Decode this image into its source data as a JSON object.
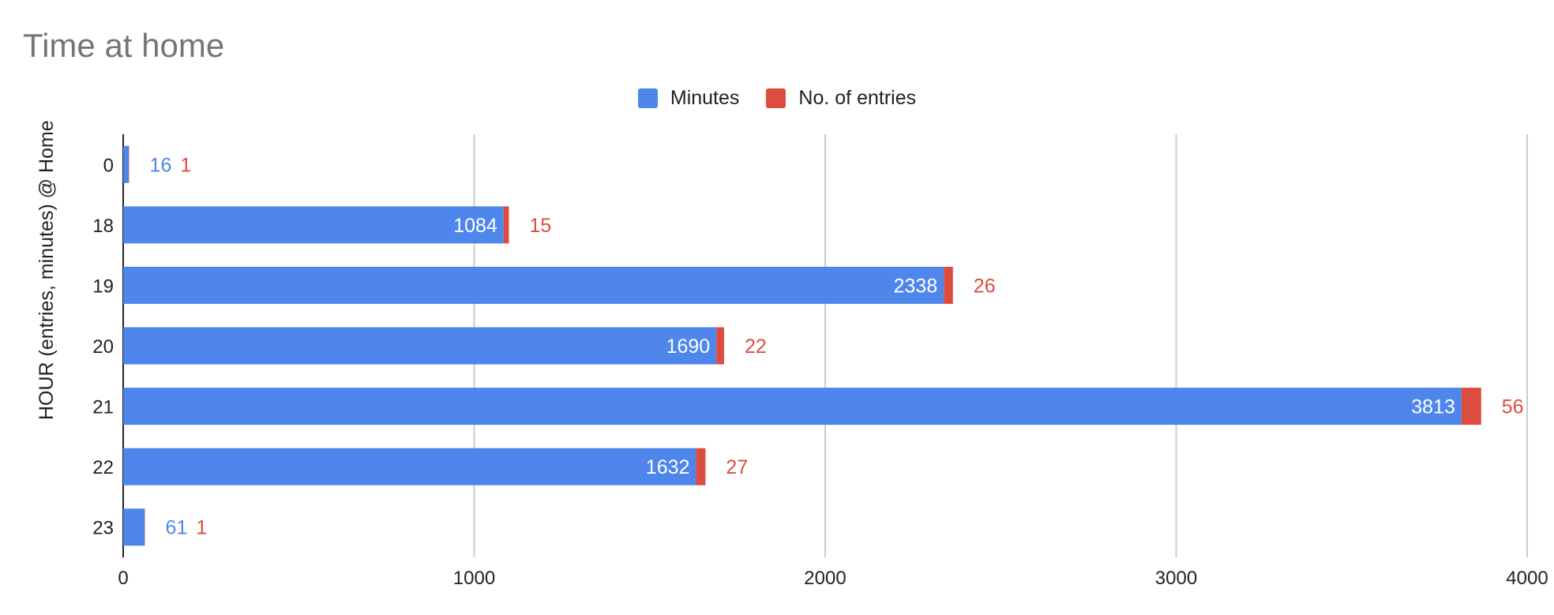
{
  "chart_data": {
    "type": "bar",
    "orientation": "horizontal",
    "stacked": true,
    "title": "Time at home",
    "ylabel": "HOUR  (entries, minutes) @ Home",
    "xlabel": "",
    "categories": [
      "0",
      "18",
      "19",
      "20",
      "21",
      "22",
      "23"
    ],
    "series": [
      {
        "name": "Minutes",
        "color": "#4f86ec",
        "values": [
          16,
          1084,
          2338,
          1690,
          3813,
          1632,
          61
        ]
      },
      {
        "name": "No. of entries",
        "color": "#dc4d3f",
        "values": [
          1,
          15,
          26,
          22,
          56,
          27,
          1
        ]
      }
    ],
    "xlim": [
      0,
      4000
    ],
    "xticks": [
      "0",
      "1000",
      "2000",
      "3000",
      "4000"
    ],
    "grid": "vertical",
    "legend_position": "top-center"
  }
}
